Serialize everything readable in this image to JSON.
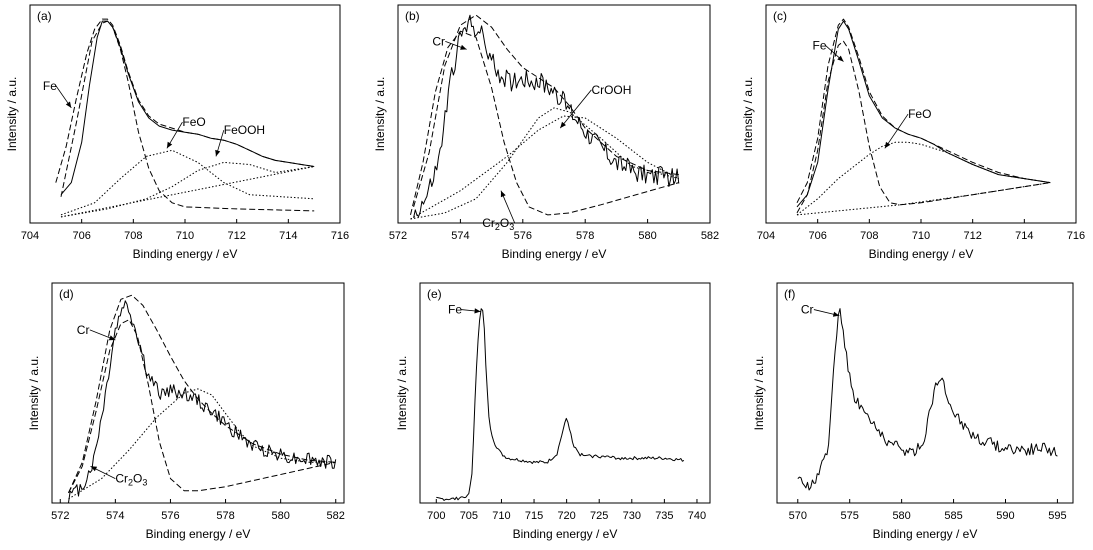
{
  "figure": {
    "background": "#ffffff",
    "ink": "#000000"
  },
  "chart_data": [
    {
      "panel": "(a)",
      "type": "line",
      "xlabel": "Binding energy / eV",
      "ylabel": "Intensity / a.u.",
      "xlim": [
        704,
        716
      ],
      "ylim": [
        0,
        1.08
      ],
      "xticks": [
        "704",
        "706",
        "708",
        "710",
        "712",
        "714",
        "716"
      ],
      "series": [
        {
          "style": "solid",
          "x": [
            705.2,
            705.6,
            706.0,
            706.3,
            706.6,
            706.8,
            707.0,
            707.2,
            707.5,
            707.8,
            708.2,
            708.6,
            709.0,
            709.5,
            710.0,
            710.5,
            711.0,
            711.5,
            712.0,
            712.5,
            713.0,
            713.5,
            714.0,
            714.5,
            715.0
          ],
          "y": [
            0.14,
            0.2,
            0.4,
            0.68,
            0.92,
            1.0,
            1.0,
            0.97,
            0.87,
            0.74,
            0.6,
            0.52,
            0.48,
            0.46,
            0.45,
            0.44,
            0.42,
            0.41,
            0.39,
            0.36,
            0.33,
            0.31,
            0.3,
            0.29,
            0.28
          ]
        },
        {
          "style": "dashed",
          "x": [
            705.0,
            705.4,
            705.8,
            706.2,
            706.5,
            706.8,
            707.0,
            707.2,
            707.5,
            707.8,
            708.2,
            708.6,
            709.0,
            709.5,
            710.0,
            710.5,
            711.0,
            711.5,
            712.0,
            712.5,
            713.0,
            713.5,
            714.0,
            714.5,
            715.0
          ],
          "y": [
            0.2,
            0.38,
            0.62,
            0.84,
            0.96,
            1.01,
            1.01,
            0.98,
            0.88,
            0.75,
            0.61,
            0.53,
            0.49,
            0.47,
            0.45,
            0.44,
            0.42,
            0.41,
            0.39,
            0.36,
            0.33,
            0.31,
            0.3,
            0.29,
            0.28
          ]
        },
        {
          "style": "dashed",
          "x": [
            705.2,
            705.8,
            706.4,
            706.8,
            707.0,
            707.2,
            707.5,
            707.8,
            708.2,
            708.6,
            709.0,
            709.5,
            710.0,
            712.0,
            715.0
          ],
          "y": [
            0.13,
            0.5,
            0.9,
            0.99,
            1.0,
            0.97,
            0.86,
            0.7,
            0.45,
            0.27,
            0.16,
            0.1,
            0.08,
            0.07,
            0.06
          ]
        },
        {
          "style": "dotted",
          "x": [
            705.2,
            706.5,
            707.5,
            708.5,
            709.5,
            710.5,
            711.5,
            712.5,
            715.0
          ],
          "y": [
            0.04,
            0.1,
            0.22,
            0.33,
            0.36,
            0.3,
            0.2,
            0.14,
            0.12
          ]
        },
        {
          "style": "dotted",
          "x": [
            705.2,
            707.0,
            708.5,
            709.5,
            710.5,
            711.5,
            712.5,
            713.5,
            714.5,
            715.0
          ],
          "y": [
            0.03,
            0.07,
            0.12,
            0.18,
            0.26,
            0.3,
            0.29,
            0.25,
            0.27,
            0.28
          ]
        },
        {
          "style": "dotted",
          "x": [
            705.2,
            715.0
          ],
          "y": [
            0.03,
            0.28
          ]
        }
      ],
      "annotations": [
        {
          "label": "Fe",
          "text_x": 704.5,
          "text_y": 0.66,
          "arrow_x": 705.6,
          "arrow_y": 0.57
        },
        {
          "label": "FeO",
          "text_x": 709.9,
          "text_y": 0.48,
          "arrow_x": 709.3,
          "arrow_y": 0.37
        },
        {
          "label": "FeOOH",
          "text_x": 711.5,
          "text_y": 0.44,
          "arrow_x": 711.2,
          "arrow_y": 0.33
        }
      ]
    },
    {
      "panel": "(b)",
      "type": "line",
      "xlabel": "Binding energy / eV",
      "ylabel": "Intensity / a.u.",
      "xlim": [
        572,
        582
      ],
      "ylim": [
        0,
        1.08
      ],
      "xticks": [
        "572",
        "574",
        "576",
        "578",
        "580",
        "582"
      ],
      "series": [
        {
          "style": "solid",
          "noise": 0.05,
          "x": [
            572.5,
            572.9,
            573.3,
            573.7,
            574.0,
            574.3,
            574.6,
            575.0,
            575.3,
            575.6,
            576.0,
            576.5,
            577.0,
            577.5,
            578.0,
            578.5,
            579.0,
            579.5,
            580.0,
            580.5,
            581.0
          ],
          "y": [
            0.04,
            0.12,
            0.3,
            0.72,
            0.92,
            0.99,
            0.96,
            0.8,
            0.73,
            0.7,
            0.72,
            0.7,
            0.66,
            0.56,
            0.46,
            0.38,
            0.3,
            0.26,
            0.24,
            0.23,
            0.22
          ]
        },
        {
          "style": "dashed",
          "x": [
            572.5,
            573.0,
            573.5,
            574.0,
            574.5,
            575.0,
            575.5,
            576.0,
            576.5,
            577.0,
            577.5,
            578.0,
            579.0,
            580.0,
            581.0
          ],
          "y": [
            0.08,
            0.35,
            0.78,
            0.98,
            1.03,
            0.97,
            0.86,
            0.77,
            0.72,
            0.67,
            0.58,
            0.47,
            0.33,
            0.26,
            0.24
          ]
        },
        {
          "style": "dashed",
          "x": [
            572.4,
            572.8,
            573.2,
            573.6,
            574.0,
            574.5,
            575.0,
            575.4,
            575.8,
            576.2,
            576.8,
            577.5,
            578.5,
            581.0
          ],
          "y": [
            0.04,
            0.3,
            0.65,
            0.87,
            0.95,
            0.92,
            0.67,
            0.4,
            0.2,
            0.08,
            0.04,
            0.05,
            0.09,
            0.2
          ]
        },
        {
          "style": "dotted",
          "x": [
            572.4,
            573.5,
            574.5,
            575.5,
            576.5,
            577.0,
            577.5,
            578.5,
            579.5,
            581.0
          ],
          "y": [
            0.02,
            0.05,
            0.12,
            0.3,
            0.52,
            0.57,
            0.55,
            0.42,
            0.28,
            0.22
          ]
        },
        {
          "style": "dotted",
          "x": [
            572.4,
            574.0,
            575.5,
            576.5,
            577.3,
            578.0,
            579.0,
            580.0,
            581.0
          ],
          "y": [
            0.02,
            0.16,
            0.33,
            0.46,
            0.53,
            0.52,
            0.42,
            0.3,
            0.22
          ]
        }
      ],
      "annotations": [
        {
          "label": "Cr",
          "text_x": 573.1,
          "text_y": 0.88,
          "arrow_x": 574.2,
          "arrow_y": 0.86
        },
        {
          "label": "CrOOH",
          "text_x": 578.2,
          "text_y": 0.64,
          "arrow_x": 577.2,
          "arrow_y": 0.47
        },
        {
          "label": "Cr2O3",
          "text_x": 574.7,
          "text_y": -0.02,
          "arrow_x": 575.3,
          "arrow_y": 0.16
        }
      ]
    },
    {
      "panel": "(c)",
      "type": "line",
      "xlabel": "Binding energy / eV",
      "ylabel": "Intensity / a.u.",
      "xlim": [
        704,
        716
      ],
      "ylim": [
        0,
        1.08
      ],
      "xticks": [
        "704",
        "706",
        "708",
        "710",
        "712",
        "714",
        "716"
      ],
      "series": [
        {
          "style": "solid",
          "x": [
            705.2,
            705.6,
            706.0,
            706.4,
            706.8,
            707.0,
            707.2,
            707.6,
            708.0,
            708.5,
            709.0,
            709.5,
            710.0,
            710.5,
            711.0,
            712.0,
            713.0,
            714.0,
            715.0
          ],
          "y": [
            0.08,
            0.14,
            0.3,
            0.66,
            0.96,
            1.0,
            0.96,
            0.8,
            0.63,
            0.52,
            0.47,
            0.44,
            0.42,
            0.39,
            0.35,
            0.29,
            0.24,
            0.22,
            0.2
          ]
        },
        {
          "style": "dashed",
          "x": [
            705.2,
            705.6,
            706.0,
            706.4,
            706.8,
            707.0,
            707.2,
            707.6,
            708.0,
            708.5,
            709.0,
            709.5,
            710.0,
            711.0,
            712.0,
            713.0,
            714.0,
            715.0
          ],
          "y": [
            0.1,
            0.2,
            0.42,
            0.78,
            0.98,
            1.01,
            0.97,
            0.82,
            0.65,
            0.53,
            0.47,
            0.44,
            0.42,
            0.36,
            0.3,
            0.25,
            0.22,
            0.2
          ]
        },
        {
          "style": "dashed",
          "x": [
            705.2,
            705.6,
            706.0,
            706.4,
            706.8,
            707.0,
            707.2,
            707.6,
            708.0,
            708.4,
            708.8,
            709.2,
            710.0,
            712.0,
            715.0
          ],
          "y": [
            0.05,
            0.14,
            0.36,
            0.7,
            0.88,
            0.9,
            0.86,
            0.65,
            0.38,
            0.18,
            0.1,
            0.09,
            0.1,
            0.14,
            0.2
          ]
        },
        {
          "style": "dotted",
          "x": [
            705.2,
            706.0,
            706.8,
            707.5,
            708.0,
            708.5,
            709.0,
            709.5,
            710.0,
            711.0,
            712.0,
            713.0,
            714.0,
            715.0
          ],
          "y": [
            0.04,
            0.12,
            0.22,
            0.29,
            0.34,
            0.38,
            0.4,
            0.4,
            0.39,
            0.35,
            0.29,
            0.24,
            0.22,
            0.2
          ]
        },
        {
          "style": "dotted",
          "x": [
            705.2,
            709.2,
            712.0,
            715.0
          ],
          "y": [
            0.04,
            0.09,
            0.14,
            0.2
          ]
        }
      ],
      "annotations": [
        {
          "label": "Fe",
          "text_x": 705.8,
          "text_y": 0.86,
          "arrow_x": 707.0,
          "arrow_y": 0.8
        },
        {
          "label": "FeO",
          "text_x": 709.5,
          "text_y": 0.52,
          "arrow_x": 708.6,
          "arrow_y": 0.37
        }
      ]
    },
    {
      "panel": "(d)",
      "type": "line",
      "xlabel": "Binding energy / eV",
      "ylabel": "Intensity / a.u.",
      "xlim": [
        571.7,
        582.3
      ],
      "ylim": [
        0,
        1.08
      ],
      "xticks": [
        "572",
        "574",
        "576",
        "578",
        "580",
        "582"
      ],
      "series": [
        {
          "style": "solid",
          "noise": 0.035,
          "x": [
            572.3,
            572.8,
            573.2,
            573.6,
            574.0,
            574.3,
            574.5,
            574.8,
            575.2,
            575.6,
            576.0,
            576.5,
            577.0,
            577.5,
            578.0,
            578.5,
            579.0,
            579.5,
            580.0,
            580.5,
            581.0,
            581.5,
            582.0
          ],
          "y": [
            0.03,
            0.08,
            0.2,
            0.5,
            0.85,
            0.98,
            0.95,
            0.82,
            0.62,
            0.54,
            0.55,
            0.54,
            0.5,
            0.45,
            0.39,
            0.33,
            0.28,
            0.26,
            0.24,
            0.22,
            0.22,
            0.2,
            0.2
          ]
        },
        {
          "style": "dashed",
          "x": [
            572.3,
            572.8,
            573.3,
            573.8,
            574.2,
            574.6,
            575.0,
            575.5,
            576.0,
            576.5,
            577.0,
            577.5,
            578.0,
            579.0,
            580.0,
            581.0,
            582.0
          ],
          "y": [
            0.05,
            0.2,
            0.5,
            0.85,
            1.0,
            1.02,
            0.97,
            0.85,
            0.72,
            0.6,
            0.51,
            0.44,
            0.38,
            0.29,
            0.24,
            0.21,
            0.2
          ]
        },
        {
          "style": "dashed",
          "x": [
            572.3,
            572.8,
            573.3,
            573.8,
            574.2,
            574.5,
            574.8,
            575.2,
            575.6,
            576.0,
            576.5,
            577.0,
            578.0,
            582.0
          ],
          "y": [
            0.05,
            0.18,
            0.45,
            0.75,
            0.88,
            0.9,
            0.82,
            0.58,
            0.3,
            0.12,
            0.06,
            0.06,
            0.08,
            0.2
          ]
        },
        {
          "style": "dotted",
          "x": [
            572.3,
            573.5,
            574.5,
            575.5,
            576.5,
            577.0,
            577.5,
            578.0,
            578.5,
            579.0,
            580.0,
            581.0,
            582.0
          ],
          "y": [
            0.02,
            0.12,
            0.26,
            0.42,
            0.54,
            0.56,
            0.53,
            0.44,
            0.35,
            0.28,
            0.22,
            0.2,
            0.2
          ]
        }
      ],
      "annotations": [
        {
          "label": "Cr",
          "text_x": 572.6,
          "text_y": 0.83,
          "arrow_x": 574.0,
          "arrow_y": 0.8
        },
        {
          "label": "Cr2O3",
          "text_x": 574.0,
          "text_y": 0.1,
          "arrow_x": 573.1,
          "arrow_y": 0.18
        }
      ]
    },
    {
      "panel": "(e)",
      "type": "line",
      "xlabel": "Binding energy / eV",
      "ylabel": "Intensity / a.u.",
      "xlim": [
        697.5,
        742
      ],
      "ylim": [
        0,
        1.08
      ],
      "xticks": [
        "700",
        "705",
        "710",
        "715",
        "720",
        "725",
        "730",
        "735",
        "740"
      ],
      "series": [
        {
          "style": "solid",
          "noise": 0.008,
          "x": [
            700.0,
            703.0,
            705.0,
            705.5,
            706.0,
            706.5,
            706.8,
            707.0,
            707.3,
            707.7,
            708.2,
            709.0,
            710.0,
            711.0,
            713.0,
            715.0,
            717.0,
            718.5,
            719.3,
            720.0,
            720.5,
            721.0,
            722.0,
            723.0,
            725.0,
            728.0,
            731.0,
            735.0,
            738.0
          ],
          "y": [
            0.02,
            0.02,
            0.04,
            0.15,
            0.55,
            0.86,
            0.95,
            0.97,
            0.9,
            0.6,
            0.37,
            0.29,
            0.24,
            0.22,
            0.21,
            0.2,
            0.2,
            0.24,
            0.34,
            0.42,
            0.36,
            0.28,
            0.24,
            0.23,
            0.23,
            0.22,
            0.22,
            0.22,
            0.21
          ]
        }
      ],
      "annotations": [
        {
          "label": "Fe",
          "text_x": 701.8,
          "text_y": 0.93,
          "arrow_x": 706.8,
          "arrow_y": 0.94
        }
      ]
    },
    {
      "panel": "(f)",
      "type": "line",
      "xlabel": "Binding energy / eV",
      "ylabel": "Intensity / a.u.",
      "xlim": [
        568,
        596.5
      ],
      "ylim": [
        0,
        1.08
      ],
      "xticks": [
        "570",
        "575",
        "580",
        "585",
        "590",
        "595"
      ],
      "series": [
        {
          "style": "solid",
          "noise": 0.03,
          "x": [
            570.0,
            571.0,
            572.0,
            573.0,
            573.5,
            574.0,
            574.3,
            574.7,
            575.2,
            576.0,
            577.0,
            578.0,
            579.0,
            580.0,
            581.0,
            582.0,
            583.0,
            583.5,
            584.0,
            585.0,
            586.0,
            587.0,
            588.0,
            590.0,
            592.0,
            594.0,
            595.0
          ],
          "y": [
            0.1,
            0.09,
            0.12,
            0.3,
            0.7,
            0.98,
            0.88,
            0.72,
            0.55,
            0.48,
            0.4,
            0.34,
            0.29,
            0.26,
            0.25,
            0.28,
            0.52,
            0.62,
            0.58,
            0.45,
            0.38,
            0.33,
            0.3,
            0.27,
            0.26,
            0.27,
            0.25
          ]
        }
      ],
      "annotations": [
        {
          "label": "Cr",
          "text_x": 570.3,
          "text_y": 0.93,
          "arrow_x": 574.0,
          "arrow_y": 0.92
        }
      ]
    }
  ]
}
